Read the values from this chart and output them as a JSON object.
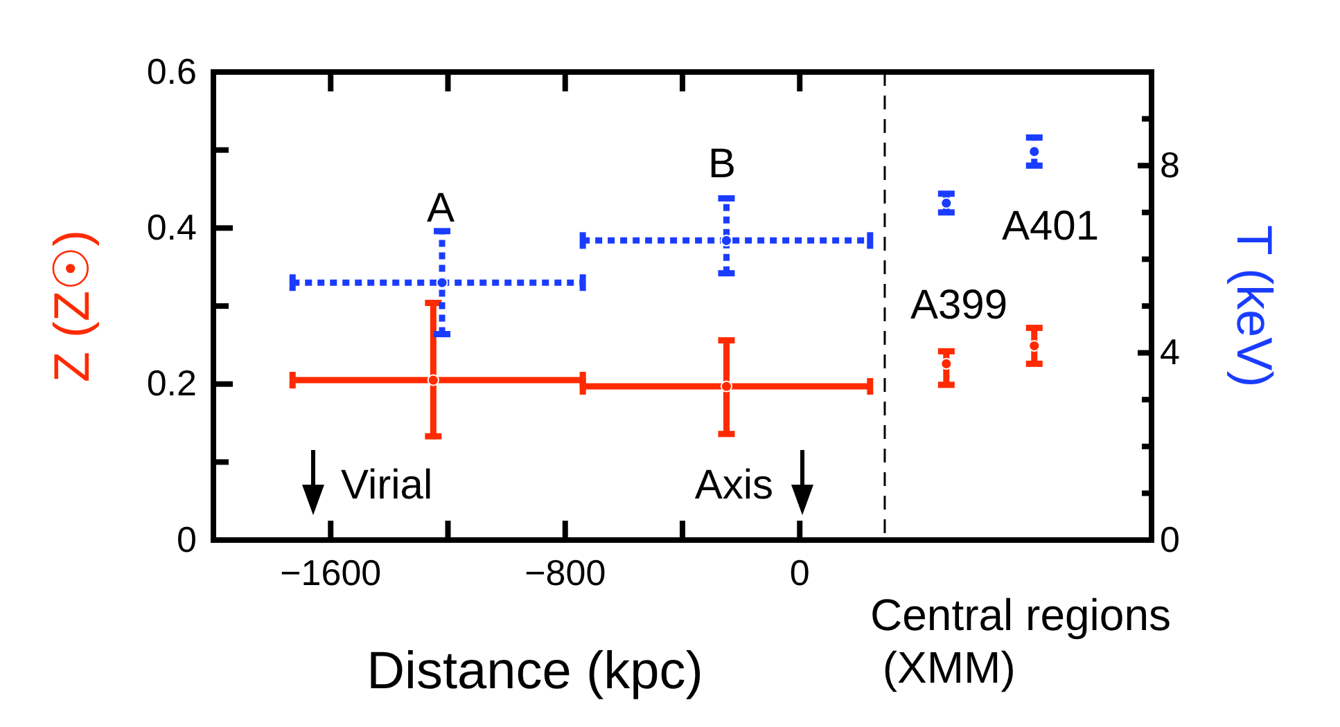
{
  "chart_data": {
    "type": "scatter",
    "xlabel": "Distance (kpc)",
    "ylabel": "Z (Z☉)",
    "y2label": "T (keV)",
    "xlim": [
      -2000,
      1200
    ],
    "xticks": [
      {
        "value": -1600,
        "label": "−1600"
      },
      {
        "value": -1200,
        "label": null
      },
      {
        "value": -800,
        "label": "−800"
      },
      {
        "value": -400,
        "label": null
      },
      0
    ],
    "ylim": [
      0,
      0.6
    ],
    "yticks": [
      0,
      {
        "value": 0.1,
        "label": null
      },
      0.2,
      {
        "value": 0.3,
        "label": null
      },
      0.4,
      {
        "value": 0.5,
        "label": null
      },
      0.6
    ],
    "y2lim": [
      0,
      10
    ],
    "y2ticks": [
      0,
      {
        "value": 1,
        "label": null
      },
      {
        "value": 2,
        "label": null
      },
      {
        "value": 3,
        "label": null
      },
      4,
      {
        "value": 5,
        "label": null
      },
      {
        "value": 6,
        "label": null
      },
      {
        "value": 7,
        "label": null
      },
      8,
      {
        "value": 9,
        "label": null
      },
      {
        "value": 10,
        "label": null
      }
    ],
    "marker": "circle",
    "grid": false,
    "series": [
      {
        "color": "#ff2a00",
        "axis": "y",
        "line_style": "solid",
        "x": [
          -1250,
          -250,
          500,
          800
        ],
        "values": [
          0.205,
          0.197,
          0.226,
          0.249
        ],
        "errors": [
          [
            0.133,
            0.304
          ],
          [
            0.136,
            0.256
          ],
          [
            0.199,
            0.242
          ],
          [
            0.226,
            0.272
          ]
        ],
        "xerrors": [
          [
            -1730,
            -740
          ],
          [
            -740,
            240
          ],
          null,
          null
        ]
      },
      {
        "color": "#1a3cff",
        "axis": "y2",
        "line_style": "dotted",
        "x": [
          -1220,
          -250,
          500,
          800
        ],
        "values": [
          5.5,
          6.4,
          7.2,
          8.3
        ],
        "errors": [
          [
            4.4,
            6.6
          ],
          [
            5.7,
            7.3
          ],
          [
            7.0,
            7.4
          ],
          [
            8.0,
            8.6
          ]
        ],
        "xerrors": [
          [
            -1730,
            -740
          ],
          [
            -740,
            240
          ],
          null,
          null
        ]
      }
    ],
    "ref_lines": [
      {
        "axis": "x",
        "value": 290,
        "line_style": "dashed",
        "color": "#000000"
      }
    ],
    "annotations": [
      "A",
      "B",
      "A399",
      "A401",
      "Virial",
      "Axis",
      "Central regions\n (XMM)"
    ]
  }
}
